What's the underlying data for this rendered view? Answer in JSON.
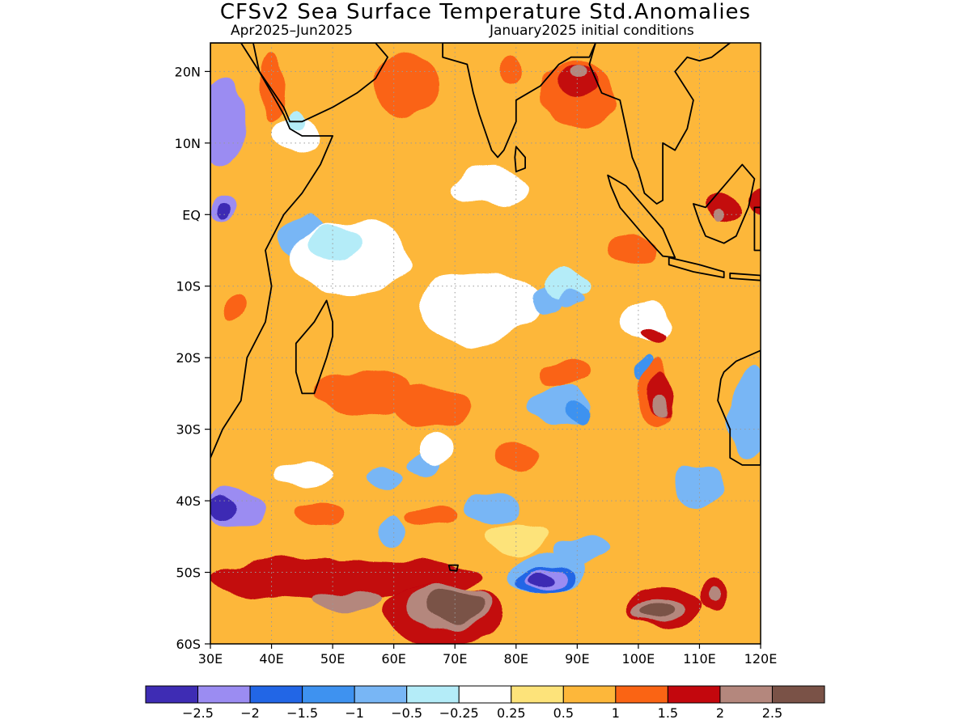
{
  "header": {
    "title": "CFSv2 Sea Surface Temperature Std.Anomalies",
    "period": "Apr2025–Jun2025",
    "initial_conditions": "January2025 initial conditions"
  },
  "map": {
    "lon_range": [
      30,
      120
    ],
    "lat_range": [
      -60,
      24
    ],
    "lat_labels": [
      "20N",
      "10N",
      "EQ",
      "10S",
      "20S",
      "30S",
      "40S",
      "50S",
      "60S"
    ],
    "lat_values": [
      20,
      10,
      0,
      -10,
      -20,
      -30,
      -40,
      -50,
      -60
    ],
    "lon_labels": [
      "30E",
      "40E",
      "50E",
      "60E",
      "70E",
      "80E",
      "90E",
      "100E",
      "110E",
      "120E"
    ],
    "lon_values": [
      30,
      40,
      50,
      60,
      70,
      80,
      90,
      100,
      110,
      120
    ],
    "base_color": "#fdb73a"
  },
  "colorbar": {
    "colors": [
      "#3e2cb4",
      "#9b8cf2",
      "#2266e6",
      "#3e92f0",
      "#78b6f5",
      "#b4ecf8",
      "#ffffff",
      "#fde37a",
      "#fdb73a",
      "#fa6414",
      "#c3070d",
      "#b4877d",
      "#7a5247"
    ],
    "labels": [
      "−2.5",
      "−2",
      "−1.5",
      "−1",
      "−0.5",
      "−0.25",
      "0.25",
      "0.5",
      "1",
      "1.5",
      "2",
      "2.5"
    ]
  },
  "anomaly_regions": [
    {
      "level": 1,
      "lon": 32,
      "lat": 13,
      "rlon": 4,
      "rlat": 6
    },
    {
      "level": 1,
      "lon": 32,
      "lat": 1,
      "rlon": 2,
      "rlat": 2
    },
    {
      "level": 0,
      "lon": 32,
      "lat": 0.5,
      "rlon": 1,
      "rlat": 1.2
    },
    {
      "level": 4,
      "lon": 45,
      "lat": -3,
      "rlon": 4,
      "rlat": 3
    },
    {
      "level": 6,
      "lon": 53,
      "lat": -6,
      "rlon": 10,
      "rlat": 5
    },
    {
      "level": 5,
      "lon": 50,
      "lat": -4,
      "rlon": 4,
      "rlat": 2.5
    },
    {
      "level": 6,
      "lon": 74,
      "lat": -13,
      "rlon": 10,
      "rlat": 5
    },
    {
      "level": 6,
      "lon": 76,
      "lat": 4,
      "rlon": 6,
      "rlat": 2.5
    },
    {
      "level": 6,
      "lon": 101,
      "lat": -15,
      "rlon": 4,
      "rlat": 3
    },
    {
      "level": 4,
      "lon": 85,
      "lat": -12,
      "rlon": 3,
      "rlat": 2
    },
    {
      "level": 6,
      "lon": 44,
      "lat": 11,
      "rlon": 4,
      "rlat": 2.5
    },
    {
      "level": 5,
      "lon": 44,
      "lat": 13,
      "rlon": 1.5,
      "rlat": 1.5
    },
    {
      "level": 9,
      "lon": 62,
      "lat": 18,
      "rlon": 5,
      "rlat": 5
    },
    {
      "level": 9,
      "lon": 55,
      "lat": -25,
      "rlon": 8,
      "rlat": 3
    },
    {
      "level": 9,
      "lon": 66,
      "lat": -27,
      "rlon": 6,
      "rlat": 3
    },
    {
      "level": 9,
      "lon": 80,
      "lat": -34,
      "rlon": 4,
      "rlat": 2
    },
    {
      "level": 9,
      "lon": 88,
      "lat": -22,
      "rlon": 4,
      "rlat": 2
    },
    {
      "level": 9,
      "lon": 99,
      "lat": -5,
      "rlon": 4,
      "rlat": 2
    },
    {
      "level": 9,
      "lon": 34,
      "lat": -13,
      "rlon": 2,
      "rlat": 2
    },
    {
      "level": 9,
      "lon": 48,
      "lat": -42,
      "rlon": 4,
      "rlat": 1.5
    },
    {
      "level": 9,
      "lon": 66,
      "lat": -42,
      "rlon": 4,
      "rlat": 1.5
    },
    {
      "level": 7,
      "lon": 80,
      "lat": -45,
      "rlon": 5,
      "rlat": 2
    },
    {
      "level": 4,
      "lon": 60,
      "lat": -44,
      "rlon": 2,
      "rlat": 2
    },
    {
      "level": 4,
      "lon": 58,
      "lat": -37,
      "rlon": 3,
      "rlat": 1.5
    },
    {
      "level": 4,
      "lon": 76,
      "lat": -41,
      "rlon": 5,
      "rlat": 2
    },
    {
      "level": 4,
      "lon": 91,
      "lat": -47,
      "rlon": 5,
      "rlat": 2
    },
    {
      "level": 4,
      "lon": 110,
      "lat": -38,
      "rlon": 4,
      "rlat": 3
    },
    {
      "level": 4,
      "lon": 118,
      "lat": -28,
      "rlon": 3,
      "rlat": 7
    },
    {
      "level": 4,
      "lon": 87,
      "lat": -27,
      "rlon": 5,
      "rlat": 3
    },
    {
      "level": 3,
      "lon": 90,
      "lat": -28,
      "rlon": 2,
      "rlat": 1.5
    },
    {
      "level": 3,
      "lon": 101,
      "lat": -21,
      "rlon": 1.5,
      "rlat": 1.5
    },
    {
      "level": 4,
      "lon": 65,
      "lat": -35,
      "rlon": 3,
      "rlat": 1.5
    },
    {
      "level": 6,
      "lon": 67,
      "lat": -33,
      "rlon": 3,
      "rlat": 2
    },
    {
      "level": 6,
      "lon": 45,
      "lat": -36,
      "rlon": 5,
      "rlat": 2
    },
    {
      "level": 1,
      "lon": 34,
      "lat": -41,
      "rlon": 5,
      "rlat": 3
    },
    {
      "level": 0,
      "lon": 32,
      "lat": -41,
      "rlon": 2.5,
      "rlat": 1.8
    },
    {
      "level": 5,
      "lon": 88,
      "lat": -10,
      "rlon": 4,
      "rlat": 2
    },
    {
      "level": 4,
      "lon": 89,
      "lat": -12,
      "rlon": 2,
      "rlat": 1
    },
    {
      "level": 9,
      "lon": 90,
      "lat": 17,
      "rlon": 6,
      "rlat": 5
    },
    {
      "level": 10,
      "lon": 90,
      "lat": 19,
      "rlon": 3.5,
      "rlat": 2.5
    },
    {
      "level": 11,
      "lon": 90,
      "lat": 20.5,
      "rlon": 1.5,
      "rlat": 1
    },
    {
      "level": 9,
      "lon": 103,
      "lat": -25,
      "rlon": 2.5,
      "rlat": 5
    },
    {
      "level": 10,
      "lon": 104,
      "lat": -25,
      "rlon": 1.8,
      "rlat": 3.5
    },
    {
      "level": 11,
      "lon": 104,
      "lat": -27,
      "rlon": 0.9,
      "rlat": 1.5
    },
    {
      "level": 10,
      "lon": 102,
      "lat": -17,
      "rlon": 2,
      "rlat": 1
    },
    {
      "level": 4,
      "lon": 85,
      "lat": -50,
      "rlon": 6,
      "rlat": 3
    },
    {
      "level": 2,
      "lon": 85,
      "lat": -51,
      "rlon": 4.5,
      "rlat": 2
    },
    {
      "level": 1,
      "lon": 85,
      "lat": -51,
      "rlon": 3,
      "rlat": 1.5
    },
    {
      "level": 0,
      "lon": 84,
      "lat": -51,
      "rlon": 1.6,
      "rlat": 1
    },
    {
      "level": 10,
      "lon": 52,
      "lat": -51,
      "rlon": 22,
      "rlat": 3
    },
    {
      "level": 10,
      "lon": 68,
      "lat": -56,
      "rlon": 10,
      "rlat": 4
    },
    {
      "level": 11,
      "lon": 52,
      "lat": -54,
      "rlon": 6,
      "rlat": 1.5
    },
    {
      "level": 11,
      "lon": 69,
      "lat": -55,
      "rlon": 7,
      "rlat": 3
    },
    {
      "level": 12,
      "lon": 70,
      "lat": -55,
      "rlon": 5,
      "rlat": 2.2
    },
    {
      "level": 10,
      "lon": 104,
      "lat": -55,
      "rlon": 6,
      "rlat": 3
    },
    {
      "level": 11,
      "lon": 103,
      "lat": -55.5,
      "rlon": 4,
      "rlat": 1.8
    },
    {
      "level": 12,
      "lon": 103,
      "lat": -55.5,
      "rlon": 2.5,
      "rlat": 1.2
    },
    {
      "level": 10,
      "lon": 112,
      "lat": -53,
      "rlon": 2.5,
      "rlat": 2.5
    },
    {
      "level": 11,
      "lon": 112,
      "lat": -53,
      "rlon": 1.2,
      "rlat": 1.2
    },
    {
      "level": 10,
      "lon": 114,
      "lat": 1,
      "rlon": 3,
      "rlat": 2
    },
    {
      "level": 11,
      "lon": 113,
      "lat": 0,
      "rlon": 1,
      "rlat": 1
    },
    {
      "level": 10,
      "lon": 120,
      "lat": 2,
      "rlon": 1.5,
      "rlat": 2
    },
    {
      "level": 9,
      "lon": 79,
      "lat": 20,
      "rlon": 2,
      "rlat": 2
    },
    {
      "level": 9,
      "lon": 40,
      "lat": 18,
      "rlon": 2,
      "rlat": 5
    }
  ],
  "land": [
    {
      "name": "africa",
      "points": [
        [
          30,
          24
        ],
        [
          30,
          -34
        ],
        [
          32,
          -30
        ],
        [
          35,
          -26
        ],
        [
          36,
          -20
        ],
        [
          39,
          -15
        ],
        [
          40,
          -10
        ],
        [
          39,
          -5
        ],
        [
          42,
          0
        ],
        [
          45,
          3
        ],
        [
          48,
          7
        ],
        [
          50,
          11
        ],
        [
          45,
          11
        ],
        [
          43,
          12
        ],
        [
          42,
          14
        ],
        [
          40,
          17
        ],
        [
          38,
          20
        ],
        [
          37,
          24
        ]
      ]
    },
    {
      "name": "arabia",
      "points": [
        [
          35,
          24
        ],
        [
          38,
          20
        ],
        [
          42,
          15
        ],
        [
          43,
          13
        ],
        [
          45,
          13
        ],
        [
          50,
          15
        ],
        [
          54,
          17
        ],
        [
          57,
          19
        ],
        [
          59,
          22
        ],
        [
          57,
          24
        ]
      ]
    },
    {
      "name": "india",
      "points": [
        [
          68,
          24
        ],
        [
          68,
          22
        ],
        [
          72,
          21
        ],
        [
          73,
          17
        ],
        [
          74,
          14
        ],
        [
          76,
          9
        ],
        [
          77,
          8
        ],
        [
          78,
          9
        ],
        [
          80,
          13
        ],
        [
          80,
          16
        ],
        [
          84,
          18
        ],
        [
          87,
          21
        ],
        [
          89,
          22
        ],
        [
          92,
          22
        ],
        [
          93,
          24
        ]
      ]
    },
    {
      "name": "srilanka",
      "points": [
        [
          80,
          9.5
        ],
        [
          81.5,
          8
        ],
        [
          81.5,
          6.5
        ],
        [
          80,
          6
        ],
        [
          79.8,
          8
        ]
      ]
    },
    {
      "name": "indochina",
      "points": [
        [
          93,
          24
        ],
        [
          92,
          21
        ],
        [
          94,
          17
        ],
        [
          97,
          16
        ],
        [
          98,
          12
        ],
        [
          99,
          8
        ],
        [
          100,
          6
        ],
        [
          101,
          3
        ],
        [
          103,
          1.5
        ],
        [
          104,
          2
        ],
        [
          104,
          10
        ],
        [
          106,
          9
        ],
        [
          108,
          12
        ],
        [
          109,
          16
        ],
        [
          106,
          20
        ],
        [
          108,
          22
        ],
        [
          110,
          21.5
        ],
        [
          112,
          22
        ],
        [
          115,
          24
        ]
      ]
    },
    {
      "name": "sumatra",
      "points": [
        [
          95,
          5.5
        ],
        [
          98,
          4
        ],
        [
          104,
          -2
        ],
        [
          106,
          -6
        ],
        [
          104,
          -5.8
        ],
        [
          101,
          -3
        ],
        [
          97,
          1
        ],
        [
          95.5,
          4
        ]
      ]
    },
    {
      "name": "java",
      "points": [
        [
          105,
          -6
        ],
        [
          110,
          -7
        ],
        [
          114,
          -8
        ],
        [
          114,
          -8.8
        ],
        [
          109,
          -8
        ],
        [
          105,
          -7
        ]
      ]
    },
    {
      "name": "nusa",
      "points": [
        [
          115,
          -8.2
        ],
        [
          120,
          -8.5
        ],
        [
          120,
          -9.2
        ],
        [
          115,
          -8.9
        ]
      ]
    },
    {
      "name": "borneo",
      "points": [
        [
          109,
          1.5
        ],
        [
          111,
          1
        ],
        [
          114,
          4
        ],
        [
          117,
          7
        ],
        [
          119,
          5
        ],
        [
          118,
          1
        ],
        [
          116,
          -3
        ],
        [
          114,
          -4
        ],
        [
          111,
          -3
        ],
        [
          110,
          -1
        ]
      ]
    },
    {
      "name": "sulawesi",
      "points": [
        [
          119,
          -5
        ],
        [
          119,
          1
        ],
        [
          120,
          1
        ],
        [
          120,
          -5
        ]
      ]
    },
    {
      "name": "madagascar",
      "points": [
        [
          49,
          -12
        ],
        [
          50,
          -15
        ],
        [
          50,
          -17
        ],
        [
          49,
          -20
        ],
        [
          47,
          -25
        ],
        [
          45,
          -25
        ],
        [
          44,
          -22
        ],
        [
          44,
          -18
        ],
        [
          47,
          -15
        ]
      ]
    },
    {
      "name": "australia",
      "points": [
        [
          114,
          -22
        ],
        [
          116,
          -20.5
        ],
        [
          120,
          -19
        ],
        [
          120,
          -35
        ],
        [
          117,
          -35
        ],
        [
          115,
          -34
        ],
        [
          115,
          -30
        ],
        [
          113,
          -26
        ],
        [
          113.5,
          -23
        ]
      ]
    },
    {
      "name": "kerguelen",
      "points": [
        [
          69,
          -49
        ],
        [
          70.5,
          -49
        ],
        [
          70.3,
          -49.8
        ],
        [
          69.2,
          -49.7
        ]
      ]
    }
  ]
}
